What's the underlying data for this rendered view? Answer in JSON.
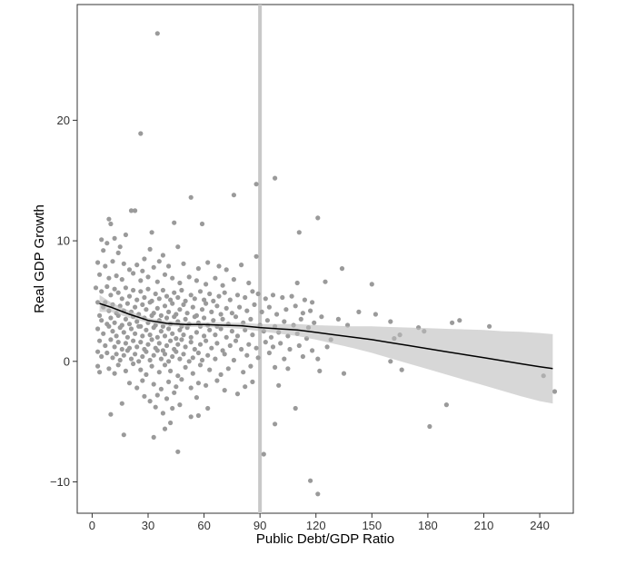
{
  "chart_data": {
    "type": "scatter",
    "title": "",
    "xlabel": "Public Debt/GDP Ratio",
    "ylabel": "Real GDP Growth",
    "xlim": [
      -8,
      258
    ],
    "ylim": [
      -12.6,
      29.6
    ],
    "x_ticks": [
      0,
      30,
      60,
      90,
      120,
      150,
      180,
      210,
      240
    ],
    "y_ticks": [
      -10,
      0,
      10,
      20
    ],
    "vertical_reference_line_x": 90,
    "grid": false,
    "legend": "none",
    "colors": {
      "panel_border": "#333333",
      "points": "#9a9a9a",
      "reference_line": "#c8c8c8",
      "confidence_band": "#bdbdbd",
      "smooth_line": "#000000",
      "tick_text": "#333333",
      "axis_title_text": "#000000"
    },
    "smooth_line": {
      "x": [
        4,
        10,
        20,
        30,
        40,
        50,
        60,
        70,
        80,
        90,
        100,
        110,
        120,
        130,
        140,
        150,
        160,
        170,
        180,
        190,
        200,
        210,
        220,
        230,
        240,
        247
      ],
      "y": [
        4.8,
        4.5,
        3.9,
        3.4,
        3.15,
        3.05,
        3.05,
        3.0,
        2.95,
        2.8,
        2.7,
        2.6,
        2.4,
        2.2,
        2.0,
        1.8,
        1.55,
        1.3,
        1.05,
        0.8,
        0.55,
        0.3,
        0.05,
        -0.2,
        -0.45,
        -0.6
      ],
      "band_lower": [
        4.1,
        4.1,
        3.6,
        3.2,
        2.95,
        2.85,
        2.85,
        2.8,
        2.7,
        2.5,
        2.3,
        2.1,
        1.8,
        1.45,
        1.1,
        0.7,
        0.25,
        -0.2,
        -0.65,
        -1.1,
        -1.55,
        -2.0,
        -2.45,
        -2.9,
        -3.3,
        -3.5
      ],
      "band_upper": [
        5.5,
        4.9,
        4.2,
        3.6,
        3.35,
        3.25,
        3.25,
        3.2,
        3.2,
        3.1,
        3.1,
        3.1,
        3.0,
        2.95,
        2.9,
        2.9,
        2.85,
        2.8,
        2.75,
        2.7,
        2.65,
        2.6,
        2.5,
        2.45,
        2.35,
        2.25
      ]
    },
    "points": [
      [
        35,
        27.2
      ],
      [
        26,
        18.9
      ],
      [
        98,
        15.2
      ],
      [
        88,
        14.7
      ],
      [
        53,
        13.6
      ],
      [
        76,
        13.8
      ],
      [
        21,
        12.5
      ],
      [
        23,
        12.5
      ],
      [
        121,
        11.9
      ],
      [
        9,
        11.8
      ],
      [
        10,
        11.4
      ],
      [
        44,
        11.5
      ],
      [
        59,
        11.4
      ],
      [
        18,
        10.5
      ],
      [
        32,
        10.7
      ],
      [
        111,
        10.7
      ],
      [
        5,
        10.1
      ],
      [
        8,
        9.8
      ],
      [
        12,
        10.2
      ],
      [
        15,
        9.5
      ],
      [
        31,
        9.3
      ],
      [
        46,
        9.5
      ],
      [
        6,
        9.2
      ],
      [
        14,
        9.0
      ],
      [
        28,
        8.5
      ],
      [
        38,
        8.8
      ],
      [
        88,
        8.7
      ],
      [
        3,
        8.2
      ],
      [
        7,
        7.9
      ],
      [
        11,
        8.3
      ],
      [
        17,
        8.1
      ],
      [
        20,
        7.6
      ],
      [
        24,
        8.0
      ],
      [
        27,
        7.5
      ],
      [
        33,
        7.8
      ],
      [
        36,
        8.3
      ],
      [
        41,
        7.9
      ],
      [
        49,
        8.1
      ],
      [
        57,
        7.7
      ],
      [
        62,
        8.2
      ],
      [
        68,
        7.9
      ],
      [
        72,
        7.6
      ],
      [
        80,
        8.0
      ],
      [
        134,
        7.7
      ],
      [
        4,
        7.2
      ],
      [
        9,
        6.9
      ],
      [
        13,
        7.1
      ],
      [
        16,
        6.8
      ],
      [
        22,
        7.3
      ],
      [
        26,
        6.7
      ],
      [
        30,
        7.0
      ],
      [
        35,
        6.6
      ],
      [
        39,
        7.2
      ],
      [
        43,
        6.9
      ],
      [
        47,
        6.5
      ],
      [
        52,
        7.0
      ],
      [
        56,
        6.7
      ],
      [
        61,
        6.4
      ],
      [
        66,
        6.9
      ],
      [
        70,
        6.3
      ],
      [
        76,
        6.8
      ],
      [
        84,
        6.5
      ],
      [
        110,
        6.5
      ],
      [
        125,
        6.6
      ],
      [
        150,
        6.4
      ],
      [
        2,
        6.1
      ],
      [
        5,
        5.8
      ],
      [
        8,
        6.2
      ],
      [
        10,
        5.5
      ],
      [
        12,
        6.0
      ],
      [
        14,
        5.7
      ],
      [
        16,
        5.2
      ],
      [
        18,
        6.1
      ],
      [
        20,
        5.4
      ],
      [
        22,
        5.9
      ],
      [
        24,
        5.1
      ],
      [
        26,
        5.8
      ],
      [
        28,
        5.3
      ],
      [
        30,
        6.0
      ],
      [
        32,
        5.0
      ],
      [
        34,
        5.6
      ],
      [
        36,
        5.2
      ],
      [
        38,
        5.9
      ],
      [
        40,
        5.4
      ],
      [
        42,
        5.1
      ],
      [
        44,
        5.7
      ],
      [
        46,
        5.3
      ],
      [
        48,
        5.9
      ],
      [
        50,
        5.0
      ],
      [
        53,
        5.5
      ],
      [
        55,
        5.2
      ],
      [
        58,
        5.8
      ],
      [
        60,
        5.1
      ],
      [
        63,
        5.6
      ],
      [
        65,
        5.0
      ],
      [
        68,
        5.4
      ],
      [
        71,
        5.7
      ],
      [
        74,
        5.1
      ],
      [
        78,
        5.5
      ],
      [
        82,
        5.3
      ],
      [
        86,
        5.8
      ],
      [
        89,
        5.6
      ],
      [
        93,
        5.2
      ],
      [
        97,
        5.5
      ],
      [
        102,
        5.3
      ],
      [
        107,
        5.4
      ],
      [
        114,
        5.1
      ],
      [
        118,
        4.9
      ],
      [
        143,
        4.1
      ],
      [
        152,
        3.9
      ],
      [
        3,
        4.9
      ],
      [
        6,
        4.5
      ],
      [
        7,
        4.9
      ],
      [
        9,
        4.2
      ],
      [
        11,
        4.7
      ],
      [
        13,
        4.0
      ],
      [
        15,
        4.6
      ],
      [
        17,
        4.2
      ],
      [
        19,
        4.8
      ],
      [
        21,
        4.1
      ],
      [
        23,
        4.5
      ],
      [
        25,
        3.9
      ],
      [
        27,
        4.7
      ],
      [
        29,
        4.3
      ],
      [
        31,
        4.9
      ],
      [
        33,
        4.0
      ],
      [
        35,
        4.4
      ],
      [
        37,
        3.8
      ],
      [
        39,
        4.6
      ],
      [
        41,
        4.1
      ],
      [
        43,
        4.8
      ],
      [
        45,
        3.9
      ],
      [
        47,
        4.3
      ],
      [
        49,
        4.7
      ],
      [
        51,
        4.0
      ],
      [
        54,
        4.5
      ],
      [
        56,
        3.8
      ],
      [
        59,
        4.3
      ],
      [
        61,
        4.8
      ],
      [
        64,
        4.1
      ],
      [
        67,
        4.6
      ],
      [
        69,
        3.9
      ],
      [
        72,
        4.4
      ],
      [
        75,
        4.0
      ],
      [
        79,
        4.5
      ],
      [
        83,
        4.2
      ],
      [
        87,
        4.7
      ],
      [
        91,
        4.1
      ],
      [
        95,
        4.5
      ],
      [
        99,
        3.9
      ],
      [
        104,
        4.3
      ],
      [
        109,
        4.6
      ],
      [
        113,
        4.0
      ],
      [
        117,
        4.2
      ],
      [
        123,
        3.7
      ],
      [
        132,
        3.5
      ],
      [
        160,
        3.3
      ],
      [
        4,
        3.8
      ],
      [
        5,
        3.4
      ],
      [
        8,
        3.1
      ],
      [
        10,
        3.6
      ],
      [
        12,
        3.2
      ],
      [
        14,
        3.8
      ],
      [
        16,
        3.0
      ],
      [
        18,
        3.5
      ],
      [
        20,
        3.1
      ],
      [
        22,
        3.7
      ],
      [
        24,
        3.3
      ],
      [
        26,
        2.9
      ],
      [
        28,
        3.6
      ],
      [
        30,
        3.2
      ],
      [
        32,
        3.8
      ],
      [
        34,
        3.0
      ],
      [
        36,
        3.4
      ],
      [
        38,
        2.9
      ],
      [
        40,
        3.6
      ],
      [
        42,
        3.1
      ],
      [
        44,
        3.7
      ],
      [
        46,
        3.3
      ],
      [
        48,
        2.9
      ],
      [
        50,
        3.5
      ],
      [
        52,
        3.1
      ],
      [
        55,
        3.7
      ],
      [
        57,
        3.2
      ],
      [
        60,
        3.6
      ],
      [
        62,
        3.0
      ],
      [
        65,
        3.4
      ],
      [
        67,
        2.9
      ],
      [
        70,
        3.5
      ],
      [
        73,
        3.1
      ],
      [
        77,
        3.7
      ],
      [
        81,
        3.2
      ],
      [
        85,
        3.5
      ],
      [
        90,
        3.0
      ],
      [
        94,
        3.4
      ],
      [
        98,
        2.9
      ],
      [
        103,
        3.3
      ],
      [
        108,
        3.0
      ],
      [
        112,
        3.5
      ],
      [
        116,
        2.8
      ],
      [
        119,
        3.2
      ],
      [
        137,
        3.0
      ],
      [
        165,
        2.2
      ],
      [
        175,
        2.8
      ],
      [
        178,
        2.5
      ],
      [
        193,
        3.2
      ],
      [
        197,
        3.4
      ],
      [
        213,
        2.9
      ],
      [
        3,
        2.7
      ],
      [
        6,
        2.3
      ],
      [
        9,
        2.9
      ],
      [
        11,
        2.5
      ],
      [
        13,
        2.1
      ],
      [
        15,
        2.8
      ],
      [
        17,
        2.4
      ],
      [
        19,
        2.0
      ],
      [
        21,
        2.7
      ],
      [
        23,
        2.3
      ],
      [
        25,
        2.9
      ],
      [
        27,
        2.1
      ],
      [
        29,
        2.6
      ],
      [
        31,
        2.2
      ],
      [
        33,
        2.8
      ],
      [
        35,
        2.0
      ],
      [
        37,
        2.5
      ],
      [
        39,
        2.1
      ],
      [
        41,
        2.7
      ],
      [
        43,
        2.3
      ],
      [
        45,
        1.9
      ],
      [
        47,
        2.6
      ],
      [
        49,
        2.2
      ],
      [
        51,
        2.8
      ],
      [
        53,
        2.0
      ],
      [
        56,
        2.4
      ],
      [
        58,
        2.9
      ],
      [
        60,
        2.1
      ],
      [
        63,
        2.6
      ],
      [
        66,
        2.2
      ],
      [
        69,
        2.7
      ],
      [
        72,
        2.0
      ],
      [
        75,
        2.5
      ],
      [
        78,
        2.1
      ],
      [
        82,
        2.6
      ],
      [
        86,
        2.2
      ],
      [
        92,
        2.5
      ],
      [
        96,
        2.0
      ],
      [
        100,
        2.4
      ],
      [
        105,
        2.1
      ],
      [
        110,
        2.3
      ],
      [
        115,
        1.9
      ],
      [
        128,
        1.8
      ],
      [
        162,
        1.9
      ],
      [
        4,
        1.7
      ],
      [
        7,
        1.3
      ],
      [
        10,
        1.8
      ],
      [
        12,
        1.2
      ],
      [
        14,
        1.6
      ],
      [
        16,
        1.0
      ],
      [
        18,
        1.5
      ],
      [
        20,
        1.1
      ],
      [
        22,
        1.7
      ],
      [
        24,
        1.2
      ],
      [
        26,
        1.6
      ],
      [
        28,
        1.0
      ],
      [
        30,
        1.4
      ],
      [
        32,
        1.8
      ],
      [
        34,
        1.1
      ],
      [
        36,
        1.5
      ],
      [
        38,
        0.9
      ],
      [
        40,
        1.3
      ],
      [
        42,
        1.7
      ],
      [
        44,
        1.0
      ],
      [
        46,
        1.4
      ],
      [
        48,
        1.8
      ],
      [
        50,
        1.2
      ],
      [
        53,
        1.6
      ],
      [
        55,
        1.0
      ],
      [
        58,
        1.4
      ],
      [
        61,
        1.7
      ],
      [
        64,
        1.1
      ],
      [
        67,
        1.5
      ],
      [
        70,
        0.9
      ],
      [
        74,
        1.3
      ],
      [
        77,
        1.7
      ],
      [
        80,
        1.0
      ],
      [
        84,
        1.4
      ],
      [
        88,
        1.1
      ],
      [
        93,
        1.6
      ],
      [
        97,
        1.2
      ],
      [
        101,
        1.5
      ],
      [
        106,
        1.0
      ],
      [
        111,
        1.3
      ],
      [
        118,
        0.9
      ],
      [
        126,
        1.2
      ],
      [
        3,
        0.8
      ],
      [
        5,
        0.4
      ],
      [
        8,
        0.7
      ],
      [
        11,
        0.3
      ],
      [
        13,
        0.6
      ],
      [
        15,
        0.1
      ],
      [
        17,
        0.5
      ],
      [
        19,
        0.9
      ],
      [
        21,
        0.2
      ],
      [
        23,
        0.6
      ],
      [
        25,
        0.0
      ],
      [
        27,
        0.4
      ],
      [
        29,
        0.8
      ],
      [
        31,
        0.1
      ],
      [
        33,
        0.5
      ],
      [
        35,
        0.9
      ],
      [
        37,
        0.2
      ],
      [
        39,
        0.6
      ],
      [
        41,
        0.0
      ],
      [
        43,
        0.4
      ],
      [
        45,
        0.8
      ],
      [
        47,
        0.2
      ],
      [
        49,
        0.6
      ],
      [
        52,
        0.0
      ],
      [
        54,
        0.3
      ],
      [
        57,
        0.7
      ],
      [
        59,
        0.1
      ],
      [
        62,
        0.5
      ],
      [
        66,
        0.2
      ],
      [
        71,
        0.6
      ],
      [
        76,
        0.1
      ],
      [
        83,
        0.5
      ],
      [
        89,
        0.3
      ],
      [
        95,
        0.7
      ],
      [
        103,
        0.2
      ],
      [
        113,
        0.4
      ],
      [
        121,
        0.2
      ],
      [
        160,
        0.0
      ],
      [
        3,
        -0.4
      ],
      [
        4,
        -0.9
      ],
      [
        9,
        -0.6
      ],
      [
        12,
        -1.0
      ],
      [
        14,
        -0.3
      ],
      [
        18,
        -0.8
      ],
      [
        22,
        -0.2
      ],
      [
        26,
        -0.7
      ],
      [
        29,
        -1.1
      ],
      [
        32,
        -0.4
      ],
      [
        36,
        -0.9
      ],
      [
        39,
        -0.3
      ],
      [
        42,
        -0.8
      ],
      [
        46,
        -1.2
      ],
      [
        50,
        -0.5
      ],
      [
        54,
        -1.0
      ],
      [
        58,
        -0.3
      ],
      [
        63,
        -0.7
      ],
      [
        69,
        -1.1
      ],
      [
        73,
        -0.6
      ],
      [
        81,
        -0.9
      ],
      [
        85,
        -0.4
      ],
      [
        98,
        -0.5
      ],
      [
        105,
        -0.6
      ],
      [
        122,
        -0.8
      ],
      [
        135,
        -1.0
      ],
      [
        166,
        -0.7
      ],
      [
        242,
        -1.2
      ],
      [
        20,
        -1.8
      ],
      [
        24,
        -2.2
      ],
      [
        27,
        -1.6
      ],
      [
        33,
        -1.9
      ],
      [
        37,
        -2.3
      ],
      [
        41,
        -1.7
      ],
      [
        45,
        -2.1
      ],
      [
        48,
        -1.5
      ],
      [
        53,
        -2.2
      ],
      [
        57,
        -1.8
      ],
      [
        61,
        -2.0
      ],
      [
        67,
        -1.6
      ],
      [
        71,
        -2.4
      ],
      [
        78,
        -2.7
      ],
      [
        82,
        -2.1
      ],
      [
        86,
        -1.7
      ],
      [
        100,
        -2.0
      ],
      [
        28,
        -2.9
      ],
      [
        31,
        -3.3
      ],
      [
        35,
        -2.8
      ],
      [
        40,
        -3.1
      ],
      [
        44,
        -2.6
      ],
      [
        56,
        -3.0
      ],
      [
        16,
        -3.5
      ],
      [
        34,
        -3.8
      ],
      [
        43,
        -3.9
      ],
      [
        47,
        -3.6
      ],
      [
        62,
        -3.9
      ],
      [
        109,
        -3.9
      ],
      [
        190,
        -3.6
      ],
      [
        248,
        -2.5
      ],
      [
        10,
        -4.4
      ],
      [
        38,
        -4.3
      ],
      [
        53,
        -4.6
      ],
      [
        57,
        -4.5
      ],
      [
        42,
        -5.1
      ],
      [
        98,
        -5.2
      ],
      [
        39,
        -5.6
      ],
      [
        181,
        -5.4
      ],
      [
        17,
        -6.1
      ],
      [
        33,
        -6.3
      ],
      [
        46,
        -7.5
      ],
      [
        92,
        -7.7
      ],
      [
        117,
        -9.9
      ],
      [
        121,
        -11.0
      ]
    ]
  }
}
